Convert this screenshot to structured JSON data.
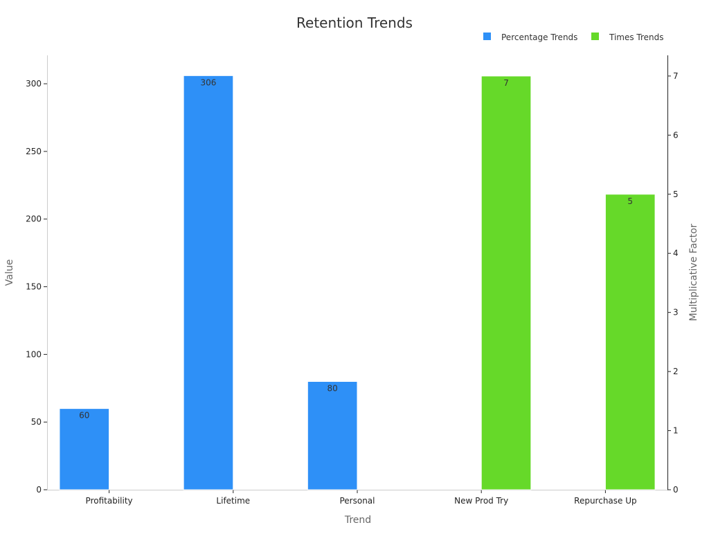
{
  "chart_data": {
    "type": "bar",
    "title": "Retention Trends",
    "xlabel": "Trend",
    "ylabel": "Value",
    "y2label": "Multiplicative Factor",
    "categories": [
      "Profitability",
      "Lifetime",
      "Personal",
      "New Prod Try",
      "Repurchase Up"
    ],
    "y_ticks": [
      0,
      50,
      100,
      150,
      200,
      250,
      300
    ],
    "y2_ticks": [
      0,
      1,
      2,
      3,
      4,
      5,
      6,
      7
    ],
    "ylim": [
      0,
      321
    ],
    "y2lim": [
      0,
      7.35
    ],
    "legend_position": "top-right",
    "grid": false,
    "series": [
      {
        "name": "Percentage Trends",
        "axis": "left",
        "color": "#2e90f7",
        "values": [
          60,
          306,
          80,
          null,
          null
        ],
        "labels": [
          "60",
          "306",
          "80",
          "",
          ""
        ]
      },
      {
        "name": "Times Trends",
        "axis": "right",
        "color": "#66d929",
        "values": [
          null,
          null,
          null,
          7,
          5
        ],
        "labels": [
          "",
          "",
          "",
          "7",
          "5"
        ]
      }
    ]
  }
}
